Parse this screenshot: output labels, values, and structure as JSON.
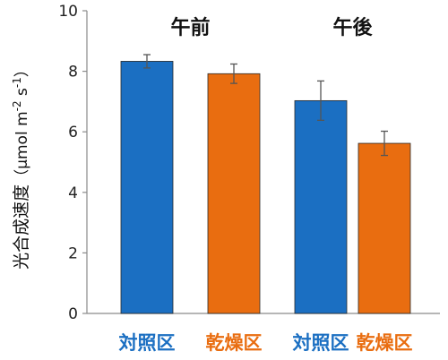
{
  "chart_data": {
    "type": "bar",
    "ylabel_main": "光合成速度",
    "ylabel_unit_parts": [
      "（μmol m",
      "-2",
      " s",
      "-1",
      "）"
    ],
    "ylim": [
      0,
      10
    ],
    "yticks": [
      0,
      2,
      4,
      6,
      8,
      10
    ],
    "grid": false,
    "bars": [
      {
        "label": "対照区",
        "value": 8.33,
        "error": 0.22,
        "color": "#1b6fc2"
      },
      {
        "label": "乾燥区",
        "value": 7.92,
        "error": 0.32,
        "color": "#e96d10"
      },
      {
        "label": "対照区",
        "value": 7.03,
        "error": 0.65,
        "color": "#1b6fc2"
      },
      {
        "label": "乾燥区",
        "value": 5.62,
        "error": 0.4,
        "color": "#e96d10"
      }
    ],
    "groups": [
      {
        "label": "午前",
        "bars": [
          0,
          1
        ]
      },
      {
        "label": "午後",
        "bars": [
          2,
          3
        ]
      }
    ]
  }
}
